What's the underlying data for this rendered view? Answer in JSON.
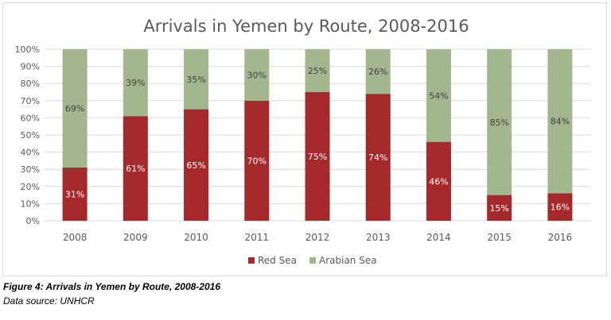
{
  "chart_data": {
    "type": "bar",
    "stacked": true,
    "title": "Arrivals in Yemen by Route, 2008-2016",
    "categories": [
      "2008",
      "2009",
      "2010",
      "2011",
      "2012",
      "2013",
      "2014",
      "2015",
      "2016"
    ],
    "series": [
      {
        "name": "Red Sea",
        "color": "#a5282a",
        "values": [
          31,
          61,
          65,
          70,
          75,
          74,
          46,
          15,
          16
        ],
        "labels": [
          "31%",
          "61%",
          "65%",
          "70%",
          "75%",
          "74%",
          "46%",
          "15%",
          "16%"
        ]
      },
      {
        "name": "Arabian Sea",
        "color": "#a3b78f",
        "values": [
          69,
          39,
          35,
          30,
          25,
          26,
          54,
          85,
          84
        ],
        "labels": [
          "69%",
          "39%",
          "35%",
          "30%",
          "25%",
          "26%",
          "54%",
          "85%",
          "84%"
        ]
      }
    ],
    "yticks": [
      "0%",
      "10%",
      "20%",
      "30%",
      "40%",
      "50%",
      "60%",
      "70%",
      "80%",
      "90%",
      "100%"
    ],
    "ylim": [
      0,
      100
    ],
    "grid": true,
    "legend": "bottom-center"
  },
  "caption": {
    "figure": "Figure 4: Arrivals in Yemen by Route, 2008-2016",
    "source": "Data source: UNHCR"
  }
}
